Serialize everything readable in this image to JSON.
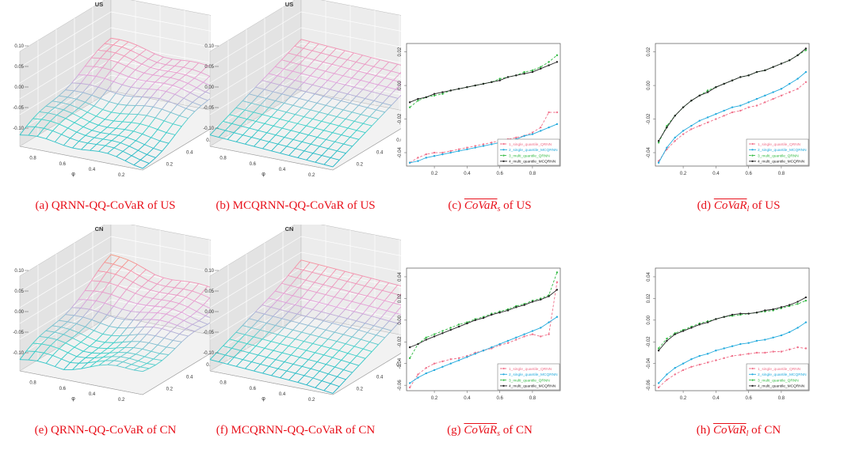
{
  "panels": [
    {
      "id": "a",
      "kind": "surface",
      "title": "US",
      "style": "qrnn",
      "caption": {
        "text": "(a) QRNN-QQ-CoVaR of US"
      },
      "zticks": [
        "0.10",
        "0.05",
        "0.00",
        "-0.05",
        "-0.10"
      ],
      "xticks": [
        "0.8",
        "0.6",
        "0.4",
        "0.2"
      ],
      "yticks": [
        "0.8",
        "0.6",
        "0.4",
        "0.2"
      ],
      "xlabel": "φ",
      "ylabel": "τ"
    },
    {
      "id": "b",
      "kind": "surface",
      "title": "US",
      "style": "mcqrnn",
      "caption": {
        "text": "(b) MCQRNN-QQ-CoVaR of US"
      },
      "zticks": [
        "0.10",
        "0.05",
        "0.00",
        "-0.05",
        "-0.10"
      ],
      "xticks": [
        "0.8",
        "0.6",
        "0.4",
        "0.2"
      ],
      "yticks": [
        "0.8",
        "0.6",
        "0.4",
        "0.2"
      ],
      "xlabel": "φ",
      "ylabel": "τ"
    },
    {
      "id": "c",
      "kind": "line",
      "caption": {
        "prefix": "(c) ",
        "var": "CoVaR",
        "sub": "s",
        "suffix": " of US"
      },
      "yticks": [
        "0.02",
        "0.00",
        "-0.02",
        "-0.04"
      ],
      "ylim": [
        -0.048,
        0.025
      ],
      "xticks": [
        "0.2",
        "0.4",
        "0.6",
        "0.8"
      ],
      "xlim": [
        0.03,
        0.97
      ],
      "legend": "bottom-right",
      "x": [
        0.05,
        0.1,
        0.15,
        0.2,
        0.25,
        0.3,
        0.35,
        0.4,
        0.45,
        0.5,
        0.55,
        0.6,
        0.65,
        0.7,
        0.75,
        0.8,
        0.85,
        0.9,
        0.95
      ],
      "series": [
        {
          "name": "1_single_quantile_QRNN",
          "color": "#f0708a",
          "dash": "3,2",
          "values": [
            -0.046,
            -0.043,
            -0.041,
            -0.04,
            -0.04,
            -0.039,
            -0.038,
            -0.037,
            -0.036,
            -0.035,
            -0.034,
            -0.033,
            -0.032,
            -0.031,
            -0.03,
            -0.028,
            -0.025,
            -0.016,
            -0.016
          ]
        },
        {
          "name": "2_single_quantile_MCQRNN",
          "color": "#22aadd",
          "dash": "",
          "values": [
            -0.046,
            -0.045,
            -0.043,
            -0.042,
            -0.041,
            -0.04,
            -0.039,
            -0.038,
            -0.037,
            -0.036,
            -0.035,
            -0.034,
            -0.033,
            -0.032,
            -0.03,
            -0.029,
            -0.027,
            -0.025,
            -0.023
          ]
        },
        {
          "name": "3_multi_quantile_QRNN",
          "color": "#33bb44",
          "dash": "3,2",
          "values": [
            -0.013,
            -0.009,
            -0.007,
            -0.006,
            -0.005,
            -0.003,
            -0.002,
            -0.001,
            0,
            0.001,
            0.002,
            0.004,
            0.005,
            0.006,
            0.008,
            0.009,
            0.011,
            0.014,
            0.018
          ]
        },
        {
          "name": "4_multi_quantile_MCQRNN",
          "color": "#222222",
          "dash": "",
          "values": [
            -0.01,
            -0.008,
            -0.007,
            -0.005,
            -0.004,
            -0.003,
            -0.002,
            -0.001,
            0,
            0.001,
            0.002,
            0.003,
            0.005,
            0.006,
            0.007,
            0.008,
            0.01,
            0.012,
            0.014
          ]
        }
      ]
    },
    {
      "id": "d",
      "kind": "line",
      "caption": {
        "prefix": "(d) ",
        "var": "CoVaR",
        "sub": "l",
        "suffix": " of US"
      },
      "yticks": [
        "0.02",
        "0.00",
        "-0.02",
        "-0.04"
      ],
      "ylim": [
        -0.048,
        0.025
      ],
      "xticks": [
        "0.2",
        "0.4",
        "0.6",
        "0.8"
      ],
      "xlim": [
        0.03,
        0.97
      ],
      "legend": "bottom-right",
      "x": [
        0.05,
        0.1,
        0.15,
        0.2,
        0.25,
        0.3,
        0.35,
        0.4,
        0.45,
        0.5,
        0.55,
        0.6,
        0.65,
        0.7,
        0.75,
        0.8,
        0.85,
        0.9,
        0.95
      ],
      "series": [
        {
          "name": "1_single_quantile_QRNN",
          "color": "#f0708a",
          "dash": "3,2",
          "values": [
            -0.045,
            -0.038,
            -0.033,
            -0.029,
            -0.026,
            -0.024,
            -0.022,
            -0.02,
            -0.018,
            -0.016,
            -0.015,
            -0.013,
            -0.012,
            -0.01,
            -0.008,
            -0.006,
            -0.004,
            -0.002,
            0.002
          ]
        },
        {
          "name": "2_single_quantile_MCQRNN",
          "color": "#22aadd",
          "dash": "",
          "values": [
            -0.046,
            -0.037,
            -0.031,
            -0.027,
            -0.024,
            -0.021,
            -0.019,
            -0.017,
            -0.015,
            -0.013,
            -0.012,
            -0.01,
            -0.008,
            -0.006,
            -0.004,
            -0.002,
            0.001,
            0.004,
            0.008
          ]
        },
        {
          "name": "3_multi_quantile_QRNN",
          "color": "#33bb44",
          "dash": "3,2",
          "values": [
            -0.034,
            -0.024,
            -0.018,
            -0.013,
            -0.009,
            -0.006,
            -0.003,
            -0.001,
            0.001,
            0.003,
            0.005,
            0.006,
            0.008,
            0.009,
            0.011,
            0.013,
            0.015,
            0.018,
            0.021
          ]
        },
        {
          "name": "4_multi_quantile_MCQRNN",
          "color": "#222222",
          "dash": "",
          "values": [
            -0.033,
            -0.025,
            -0.018,
            -0.013,
            -0.009,
            -0.006,
            -0.004,
            -0.001,
            0.001,
            0.003,
            0.005,
            0.006,
            0.008,
            0.009,
            0.011,
            0.013,
            0.015,
            0.018,
            0.022
          ]
        }
      ]
    },
    {
      "id": "e",
      "kind": "surface",
      "title": "CN",
      "style": "qrnn",
      "caption": {
        "text": "(e) QRNN-QQ-CoVaR of CN"
      },
      "zticks": [
        "0.10",
        "0.05",
        "0.00",
        "-0.05",
        "-0.10"
      ],
      "xticks": [
        "0.8",
        "0.6",
        "0.4",
        "0.2"
      ],
      "yticks": [
        "0.8",
        "0.6",
        "0.4",
        "0.2"
      ],
      "xlabel": "φ",
      "ylabel": "τ"
    },
    {
      "id": "f",
      "kind": "surface",
      "title": "CN",
      "style": "mcqrnn",
      "caption": {
        "text": "(f) MCQRNN-QQ-CoVaR of CN"
      },
      "zticks": [
        "0.10",
        "0.05",
        "0.00",
        "-0.05",
        "-0.10"
      ],
      "xticks": [
        "0.8",
        "0.6",
        "0.4",
        "0.2"
      ],
      "yticks": [
        "0.8",
        "0.6",
        "0.4",
        "0.2"
      ],
      "xlabel": "φ",
      "ylabel": "τ"
    },
    {
      "id": "g",
      "kind": "line",
      "caption": {
        "prefix": "(g) ",
        "var": "CoVaR",
        "sub": "s",
        "suffix": " of CN"
      },
      "yticks": [
        "0.04",
        "0.02",
        "0.00",
        "-0.02",
        "-0.04",
        "-0.06"
      ],
      "ylim": [
        -0.065,
        0.048
      ],
      "xticks": [
        "0.2",
        "0.4",
        "0.6",
        "0.8"
      ],
      "xlim": [
        0.03,
        0.97
      ],
      "legend": "bottom-right",
      "x": [
        0.05,
        0.1,
        0.15,
        0.2,
        0.25,
        0.3,
        0.35,
        0.4,
        0.45,
        0.5,
        0.55,
        0.6,
        0.65,
        0.7,
        0.75,
        0.8,
        0.85,
        0.9,
        0.95
      ],
      "series": [
        {
          "name": "1_single_quantile_QRNN",
          "color": "#f0708a",
          "dash": "3,2",
          "values": [
            -0.062,
            -0.05,
            -0.044,
            -0.04,
            -0.038,
            -0.036,
            -0.035,
            -0.033,
            -0.03,
            -0.028,
            -0.026,
            -0.023,
            -0.021,
            -0.018,
            -0.015,
            -0.013,
            -0.015,
            -0.013,
            0.035
          ]
        },
        {
          "name": "2_single_quantile_MCQRNN",
          "color": "#22aadd",
          "dash": "",
          "values": [
            -0.058,
            -0.053,
            -0.049,
            -0.046,
            -0.043,
            -0.04,
            -0.037,
            -0.034,
            -0.031,
            -0.028,
            -0.025,
            -0.022,
            -0.019,
            -0.016,
            -0.013,
            -0.01,
            -0.007,
            -0.002,
            0.003
          ]
        },
        {
          "name": "3_multi_quantile_QRNN",
          "color": "#33bb44",
          "dash": "3,2",
          "values": [
            -0.035,
            -0.022,
            -0.016,
            -0.013,
            -0.01,
            -0.007,
            -0.004,
            -0.002,
            0.001,
            0.003,
            0.006,
            0.008,
            0.01,
            0.013,
            0.015,
            0.018,
            0.02,
            0.023,
            0.044
          ]
        },
        {
          "name": "4_multi_quantile_MCQRNN",
          "color": "#222222",
          "dash": "",
          "values": [
            -0.025,
            -0.022,
            -0.018,
            -0.015,
            -0.012,
            -0.009,
            -0.006,
            -0.003,
            0,
            0.002,
            0.005,
            0.007,
            0.009,
            0.012,
            0.014,
            0.017,
            0.019,
            0.022,
            0.028
          ]
        }
      ]
    },
    {
      "id": "h",
      "kind": "line",
      "caption": {
        "prefix": "(h) ",
        "var": "CoVaR",
        "sub": "l",
        "suffix": " of CN"
      },
      "yticks": [
        "0.04",
        "0.02",
        "0.00",
        "-0.02",
        "-0.04",
        "-0.06"
      ],
      "ylim": [
        -0.065,
        0.048
      ],
      "xticks": [
        "0.2",
        "0.4",
        "0.6",
        "0.8"
      ],
      "xlim": [
        0.03,
        0.97
      ],
      "legend": "bottom-right",
      "x": [
        0.05,
        0.1,
        0.15,
        0.2,
        0.25,
        0.3,
        0.35,
        0.4,
        0.45,
        0.5,
        0.55,
        0.6,
        0.65,
        0.7,
        0.75,
        0.8,
        0.85,
        0.9,
        0.95
      ],
      "series": [
        {
          "name": "1_single_quantile_QRNN",
          "color": "#f0708a",
          "dash": "3,2",
          "values": [
            -0.062,
            -0.055,
            -0.05,
            -0.046,
            -0.043,
            -0.041,
            -0.039,
            -0.037,
            -0.035,
            -0.033,
            -0.032,
            -0.031,
            -0.03,
            -0.03,
            -0.029,
            -0.029,
            -0.027,
            -0.025,
            -0.026
          ]
        },
        {
          "name": "2_single_quantile_MCQRNN",
          "color": "#22aadd",
          "dash": "",
          "values": [
            -0.058,
            -0.05,
            -0.044,
            -0.04,
            -0.036,
            -0.033,
            -0.031,
            -0.028,
            -0.026,
            -0.024,
            -0.022,
            -0.021,
            -0.019,
            -0.018,
            -0.016,
            -0.014,
            -0.011,
            -0.007,
            -0.002
          ]
        },
        {
          "name": "3_multi_quantile_QRNN",
          "color": "#33bb44",
          "dash": "3,2",
          "values": [
            -0.026,
            -0.017,
            -0.012,
            -0.009,
            -0.006,
            -0.003,
            -0.001,
            0.001,
            0.003,
            0.004,
            0.005,
            0.006,
            0.007,
            0.008,
            0.009,
            0.011,
            0.013,
            0.015,
            0.018
          ]
        },
        {
          "name": "4_multi_quantile_MCQRNN",
          "color": "#222222",
          "dash": "",
          "values": [
            -0.028,
            -0.019,
            -0.013,
            -0.01,
            -0.007,
            -0.004,
            -0.002,
            0.001,
            0.003,
            0.005,
            0.006,
            0.006,
            0.007,
            0.009,
            0.01,
            0.012,
            0.014,
            0.017,
            0.021
          ]
        }
      ]
    }
  ]
}
